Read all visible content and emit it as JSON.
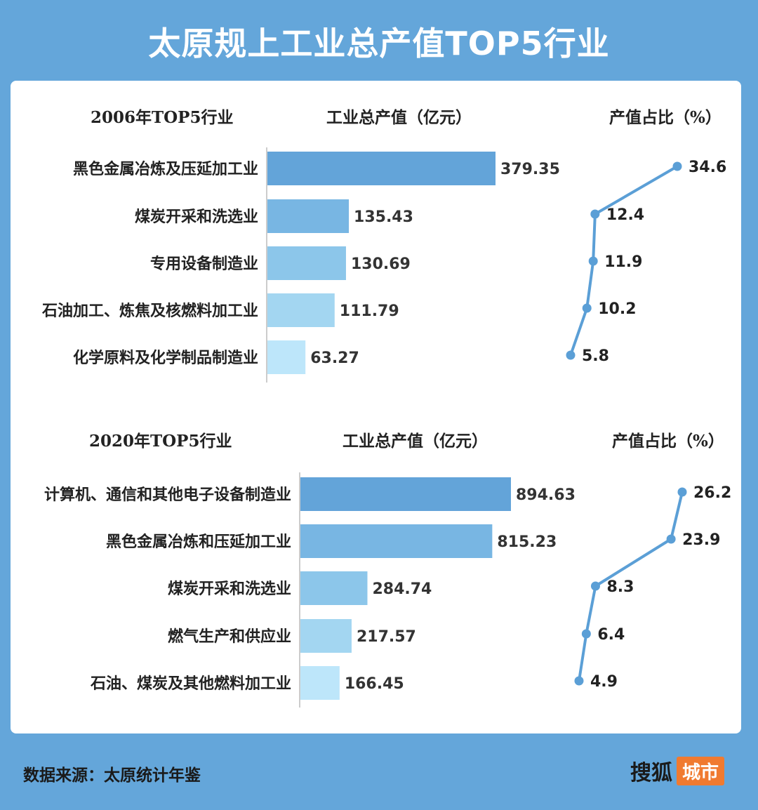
{
  "title": "太原规上工业总产值TOP5行业",
  "source": "数据来源：太原统计年鉴",
  "brand": {
    "name": "搜狐",
    "tag": "城市"
  },
  "colors": [
    "#63a4d9",
    "#78b6e3",
    "#8cc6ea",
    "#a3d6f1",
    "#bde6fa"
  ],
  "line_color": "#5b9fd6",
  "chart_data": [
    {
      "type": "bar",
      "header": "2006年TOP5行业",
      "value_header": "工业总产值（亿元）",
      "pct_header": "产值占比（%）",
      "categories": [
        "黑色金属冶炼及压延加工业",
        "煤炭开采和洗选业",
        "专用设备制造业",
        "石油加工、炼焦及核燃料加工业",
        "化学原料及化学制品制造业"
      ],
      "values": [
        379.35,
        135.43,
        130.69,
        111.79,
        63.27
      ],
      "value_labels": [
        "379.35",
        "135.43",
        "130.69",
        "111.79",
        "63.27"
      ],
      "share": [
        34.6,
        12.4,
        11.9,
        10.2,
        5.8
      ],
      "share_labels": [
        "34.6",
        "12.4",
        "11.9",
        "10.2",
        "5.8"
      ]
    },
    {
      "type": "bar",
      "header": "2020年TOP5行业",
      "value_header": "工业总产值（亿元）",
      "pct_header": "产值占比（%）",
      "categories": [
        "计算机、通信和其他电子设备制造业",
        "黑色金属冶炼和压延加工业",
        "煤炭开采和洗选业",
        "燃气生产和供应业",
        "石油、煤炭及其他燃料加工业"
      ],
      "values": [
        894.63,
        815.23,
        284.74,
        217.57,
        166.45
      ],
      "value_labels": [
        "894.63",
        "815.23",
        "284.74",
        "217.57",
        "166.45"
      ],
      "share": [
        26.2,
        23.9,
        8.3,
        6.4,
        4.9
      ],
      "share_labels": [
        "26.2",
        "23.9",
        "8.3",
        "6.4",
        "4.9"
      ]
    }
  ]
}
